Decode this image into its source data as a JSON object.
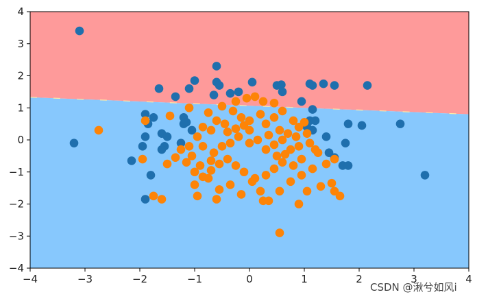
{
  "chart_data": {
    "type": "scatter",
    "title": "",
    "xlabel": "",
    "ylabel": "",
    "xlim": [
      -4,
      4
    ],
    "ylim": [
      -4,
      4
    ],
    "xticks": [
      -4,
      -3,
      -2,
      -1,
      0,
      1,
      2,
      3,
      4
    ],
    "yticks": [
      -4,
      -3,
      -2,
      -1,
      0,
      1,
      2,
      3,
      4
    ],
    "xtick_labels": [
      "−4",
      "−3",
      "−2",
      "−1",
      "0",
      "1",
      "2",
      "3",
      "4"
    ],
    "ytick_labels": [
      "−4",
      "−3",
      "−2",
      "−1",
      "0",
      "1",
      "2",
      "3",
      "4"
    ],
    "grid": false,
    "legend": "none",
    "decision_boundary": {
      "points": [
        [
          -4,
          1.33
        ],
        [
          4,
          0.8
        ]
      ],
      "region_above_color": "#fe9a9a",
      "region_below_color": "#87c8fd"
    },
    "series": [
      {
        "color": "#1f6fad",
        "points": [
          [
            -3.1,
            3.4
          ],
          [
            -0.6,
            2.3
          ],
          [
            -1.65,
            1.6
          ],
          [
            -1.35,
            1.35
          ],
          [
            -1.1,
            1.6
          ],
          [
            -1.0,
            1.85
          ],
          [
            -0.6,
            1.8
          ],
          [
            -0.55,
            1.7
          ],
          [
            -0.65,
            1.4
          ],
          [
            -0.35,
            1.45
          ],
          [
            -0.2,
            1.5
          ],
          [
            0.05,
            1.8
          ],
          [
            0.5,
            1.7
          ],
          [
            0.58,
            1.72
          ],
          [
            0.6,
            1.5
          ],
          [
            1.1,
            1.75
          ],
          [
            1.15,
            1.7
          ],
          [
            1.35,
            1.75
          ],
          [
            1.55,
            1.7
          ],
          [
            2.15,
            1.7
          ],
          [
            0.95,
            1.2
          ],
          [
            1.15,
            0.95
          ],
          [
            1.1,
            0.6
          ],
          [
            1.2,
            0.6
          ],
          [
            1.05,
            0.4
          ],
          [
            1.15,
            0.3
          ],
          [
            1.4,
            0.1
          ],
          [
            1.8,
            0.5
          ],
          [
            2.05,
            0.45
          ],
          [
            2.75,
            0.5
          ],
          [
            1.75,
            -0.1
          ],
          [
            1.45,
            -0.4
          ],
          [
            1.55,
            -0.55
          ],
          [
            1.7,
            -0.8
          ],
          [
            1.8,
            -0.8
          ],
          [
            3.2,
            -1.1
          ],
          [
            -1.9,
            0.8
          ],
          [
            -1.75,
            0.7
          ],
          [
            -1.85,
            0.5
          ],
          [
            -1.2,
            0.7
          ],
          [
            -1.15,
            0.55
          ],
          [
            -1.2,
            0.5
          ],
          [
            -1.05,
            0.3
          ],
          [
            -1.6,
            0.2
          ],
          [
            -1.5,
            0.1
          ],
          [
            -1.9,
            0.1
          ],
          [
            -1.95,
            -0.2
          ],
          [
            -1.55,
            -0.2
          ],
          [
            -1.6,
            -0.3
          ],
          [
            -1.25,
            -0.1
          ],
          [
            -2.15,
            -0.65
          ],
          [
            -1.8,
            -1.1
          ],
          [
            -1.9,
            -1.85
          ],
          [
            -3.2,
            -0.1
          ]
        ]
      },
      {
        "color": "#fd8407",
        "points": [
          [
            -2.75,
            0.3
          ],
          [
            -1.9,
            0.6
          ],
          [
            -1.45,
            0.75
          ],
          [
            -1.1,
            1.0
          ],
          [
            -0.75,
            0.85
          ],
          [
            -0.5,
            1.05
          ],
          [
            -0.25,
            1.2
          ],
          [
            -0.05,
            1.3
          ],
          [
            0.1,
            1.35
          ],
          [
            0.25,
            1.2
          ],
          [
            0.45,
            1.15
          ],
          [
            0.6,
            0.9
          ],
          [
            0.8,
            0.6
          ],
          [
            0.9,
            0.4
          ],
          [
            1.0,
            0.55
          ],
          [
            1.05,
            0.2
          ],
          [
            0.85,
            0.1
          ],
          [
            0.7,
            0.2
          ],
          [
            0.55,
            0.3
          ],
          [
            0.45,
            0.7
          ],
          [
            0.3,
            0.5
          ],
          [
            0.2,
            0.8
          ],
          [
            0.0,
            0.6
          ],
          [
            -0.15,
            0.7
          ],
          [
            -0.3,
            0.9
          ],
          [
            -0.45,
            0.5
          ],
          [
            -0.6,
            0.6
          ],
          [
            -0.7,
            0.3
          ],
          [
            -0.85,
            0.4
          ],
          [
            -0.95,
            0.1
          ],
          [
            -1.1,
            -0.2
          ],
          [
            -1.25,
            -0.3
          ],
          [
            -1.05,
            -0.5
          ],
          [
            -0.85,
            -0.2
          ],
          [
            -0.65,
            -0.4
          ],
          [
            -0.5,
            -0.2
          ],
          [
            -0.35,
            -0.1
          ],
          [
            -0.2,
            0.1
          ],
          [
            0.0,
            -0.1
          ],
          [
            0.15,
            0.0
          ],
          [
            0.3,
            -0.3
          ],
          [
            0.45,
            -0.15
          ],
          [
            0.6,
            0.0
          ],
          [
            0.75,
            -0.3
          ],
          [
            0.9,
            -0.2
          ],
          [
            1.1,
            -0.1
          ],
          [
            1.25,
            -0.4
          ],
          [
            0.95,
            -0.6
          ],
          [
            0.8,
            -0.8
          ],
          [
            0.6,
            -0.7
          ],
          [
            0.45,
            -0.9
          ],
          [
            0.3,
            -1.1
          ],
          [
            0.1,
            -1.2
          ],
          [
            -0.1,
            -1.0
          ],
          [
            -0.25,
            -0.8
          ],
          [
            -0.4,
            -0.6
          ],
          [
            -0.55,
            -0.75
          ],
          [
            -0.7,
            -0.95
          ],
          [
            -0.85,
            -1.15
          ],
          [
            -1.0,
            -1.0
          ],
          [
            -1.15,
            -0.7
          ],
          [
            -1.35,
            -0.55
          ],
          [
            -1.5,
            -0.75
          ],
          [
            -1.95,
            -0.6
          ],
          [
            -1.75,
            -1.75
          ],
          [
            -1.6,
            -1.85
          ],
          [
            -1.0,
            -1.4
          ],
          [
            -0.75,
            -1.2
          ],
          [
            -0.55,
            -1.55
          ],
          [
            -0.35,
            -1.4
          ],
          [
            -0.15,
            -1.7
          ],
          [
            0.05,
            -1.3
          ],
          [
            0.2,
            -1.6
          ],
          [
            0.35,
            -1.9
          ],
          [
            0.55,
            -1.6
          ],
          [
            0.75,
            -1.3
          ],
          [
            0.95,
            -1.1
          ],
          [
            1.15,
            -0.9
          ],
          [
            1.4,
            -0.75
          ],
          [
            1.5,
            -1.35
          ],
          [
            1.3,
            -1.45
          ],
          [
            1.05,
            -1.6
          ],
          [
            0.9,
            -2.0
          ],
          [
            1.55,
            -1.6
          ],
          [
            1.65,
            -1.75
          ],
          [
            1.55,
            -0.6
          ],
          [
            1.2,
            -0.3
          ],
          [
            0.55,
            -2.9
          ],
          [
            -0.6,
            -1.85
          ],
          [
            -0.95,
            -1.75
          ],
          [
            0.25,
            -1.9
          ],
          [
            0.0,
            0.3
          ],
          [
            -0.1,
            0.45
          ],
          [
            0.35,
            0.15
          ],
          [
            -0.4,
            0.25
          ],
          [
            -0.25,
            0.35
          ],
          [
            0.5,
            -0.5
          ],
          [
            -0.7,
            -0.65
          ],
          [
            0.65,
            -0.45
          ],
          [
            -0.9,
            -0.8
          ]
        ]
      }
    ]
  },
  "watermark_text": "CSDN @湫兮如风i"
}
